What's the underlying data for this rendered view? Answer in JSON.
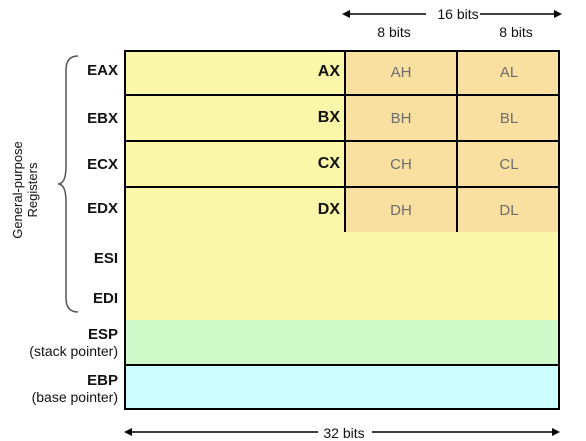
{
  "diagram": {
    "top_labels": {
      "sixteen_bits": "16 bits",
      "high_bits": "8 bits",
      "low_bits": "8 bits"
    },
    "bottom_label": "32 bits",
    "side_label": "General-purpose Registers",
    "registers": [
      {
        "name": "EAX",
        "word": "AX",
        "high": "AH",
        "low": "AL",
        "color": "#fbf7a8"
      },
      {
        "name": "EBX",
        "word": "BX",
        "high": "BH",
        "low": "BL",
        "color": "#fbf7a8"
      },
      {
        "name": "ECX",
        "word": "CX",
        "high": "CH",
        "low": "CL",
        "color": "#fbf7a8"
      },
      {
        "name": "EDX",
        "word": "DX",
        "high": "DH",
        "low": "DL",
        "color": "#fbf7a8"
      },
      {
        "name": "ESI",
        "color": "#fbf7a8"
      },
      {
        "name": "EDI",
        "color": "#fbf7a8"
      },
      {
        "name": "ESP",
        "desc": "(stack pointer)",
        "color": "#cdfac8"
      },
      {
        "name": "EBP",
        "desc": "(base pointer)",
        "color": "#ccfcfd"
      }
    ]
  }
}
